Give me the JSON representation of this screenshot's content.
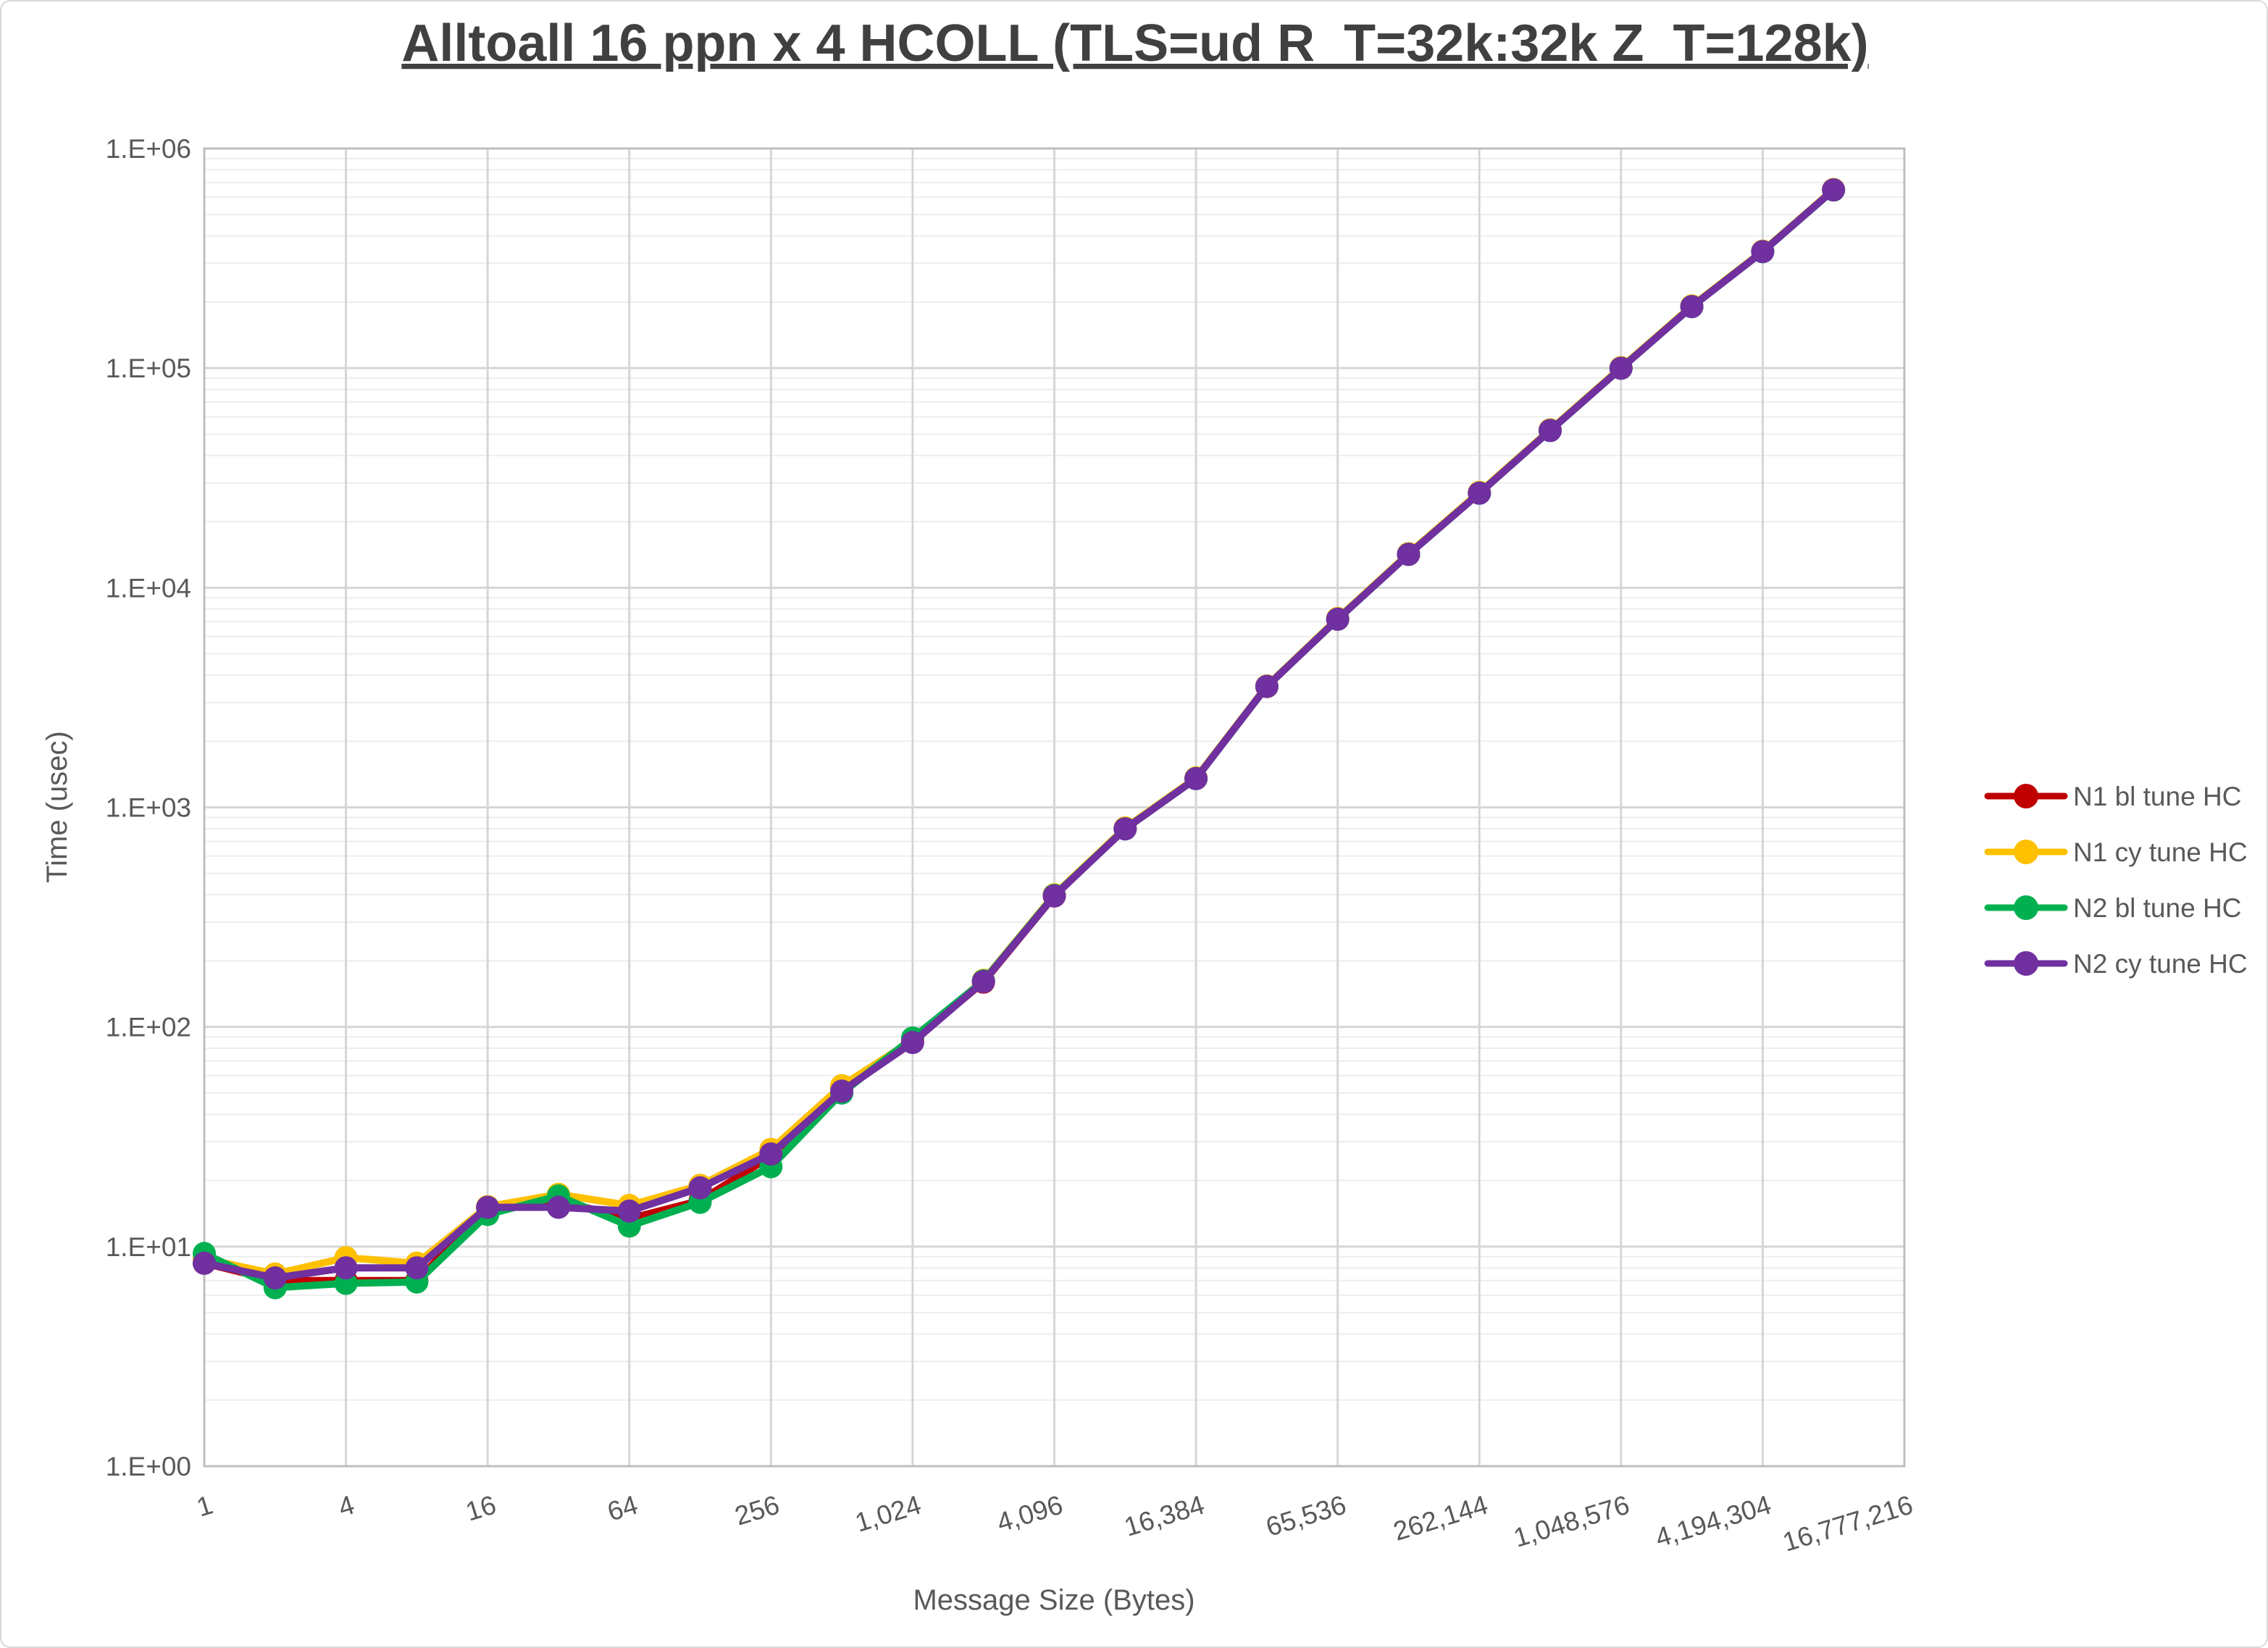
{
  "title": "Alltoall 16 ppn x 4 HCOLL (TLS=ud R_T=32k:32k Z_T=128k)",
  "axes": {
    "x_label": "Message Size (Bytes)",
    "y_label": "Time (usec)",
    "x_tick_labels": [
      "1",
      "4",
      "16",
      "64",
      "256",
      "1,024",
      "4,096",
      "16,384",
      "65,536",
      "262,144",
      "1,048,576",
      "4,194,304",
      "16,777,216"
    ],
    "y_tick_labels": [
      "1.E+00",
      "1.E+01",
      "1.E+02",
      "1.E+03",
      "1.E+04",
      "1.E+05",
      "1.E+06"
    ]
  },
  "legend": {
    "position": "right",
    "entries": [
      {
        "label": "N1 bl tune HC",
        "color": "#C00000"
      },
      {
        "label": "N1 cy tune HC",
        "color": "#FFC000"
      },
      {
        "label": "N2 bl tune HC",
        "color": "#00B050"
      },
      {
        "label": "N2 cy tune HC",
        "color": "#7030A0"
      }
    ]
  },
  "colors": {
    "grid_major": "#d6d6d6",
    "grid_minor": "#ededed",
    "plot_border": "#bfbfbf",
    "text": "#595959",
    "title_text": "#404040"
  },
  "chart_data": {
    "type": "line",
    "title": "Alltoall 16 ppn x 4 HCOLL (TLS=ud R_T=32k:32k Z_T=128k)",
    "xlabel": "Message Size (Bytes)",
    "ylabel": "Time (usec)",
    "x_scale": "log2-category",
    "y_scale": "log10",
    "ylim": [
      1,
      1000000
    ],
    "xlim_categories": [
      1,
      16777216
    ],
    "grid": "major-and-minor-log",
    "legend_position": "right",
    "x": [
      1,
      2,
      4,
      8,
      16,
      32,
      64,
      128,
      256,
      512,
      1024,
      2048,
      4096,
      8192,
      16384,
      32768,
      65536,
      131072,
      262144,
      524288,
      1048576,
      2097152,
      4194304,
      8388608
    ],
    "xticks": [
      1,
      4,
      16,
      64,
      256,
      1024,
      4096,
      16384,
      65536,
      262144,
      1048576,
      4194304,
      16777216
    ],
    "yticks": [
      1,
      10,
      100,
      1000,
      10000,
      100000,
      1000000
    ],
    "series": [
      {
        "name": "N1 bl tune HC",
        "color": "#C00000",
        "values": [
          8.4,
          7.0,
          7.0,
          7.0,
          15.0,
          16.2,
          13.4,
          16.2,
          25.8,
          53,
          86,
          160,
          395,
          800,
          1355,
          3550,
          7200,
          14200,
          27000,
          52100,
          100000,
          191000,
          340000,
          649000
        ]
      },
      {
        "name": "N1 cy tune HC",
        "color": "#FFC000",
        "values": [
          8.8,
          7.5,
          8.9,
          8.4,
          15.2,
          17.3,
          15.4,
          19.0,
          27.7,
          54,
          87,
          163,
          400,
          806,
          1362,
          3570,
          7250,
          14300,
          27200,
          52400,
          100600,
          192000,
          341000,
          651000
        ]
      },
      {
        "name": "N2 bl tune HC",
        "color": "#00B050",
        "values": [
          9.3,
          6.5,
          6.8,
          6.9,
          14.0,
          17.0,
          12.4,
          15.9,
          23.1,
          50,
          89,
          162,
          397,
          798,
          1352,
          3556,
          7190,
          14190,
          26950,
          52000,
          99800,
          190500,
          339000,
          647000
        ]
      },
      {
        "name": "N2 cy tune HC",
        "color": "#7030A0",
        "values": [
          8.4,
          7.2,
          8.0,
          8.0,
          15.1,
          15.1,
          14.5,
          18.5,
          26.4,
          51,
          85,
          161,
          395,
          798,
          1352,
          3556,
          7190,
          14190,
          26950,
          52000,
          99800,
          190500,
          339000,
          648000
        ]
      }
    ]
  }
}
